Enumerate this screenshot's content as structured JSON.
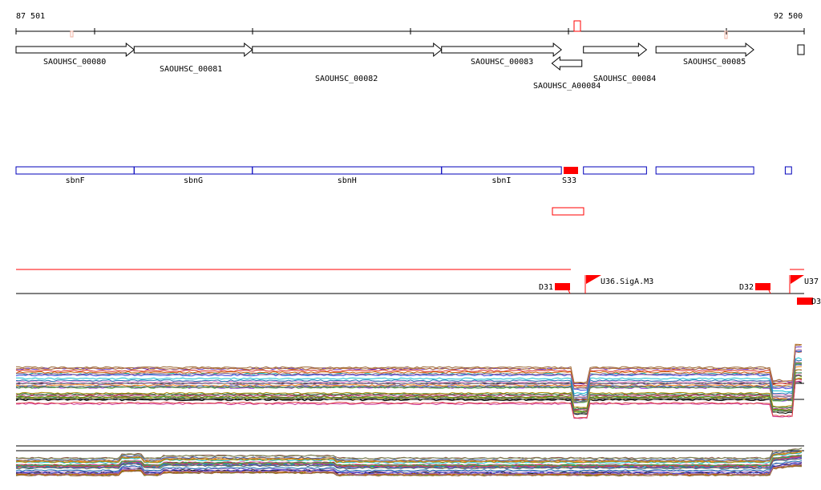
{
  "coordinate_axis": {
    "start_label": "87 501",
    "end_label": "92 500",
    "start_coord": 87501,
    "end_coord": 92500
  },
  "genes": [
    {
      "id": "SAOUHSC_00080",
      "start": 87501,
      "end": 88250,
      "strand": "+",
      "label": "SAOUHSC_00080"
    },
    {
      "id": "SAOUHSC_00081",
      "start": 88250,
      "end": 89000,
      "strand": "+",
      "label": "SAOUHSC_00081"
    },
    {
      "id": "SAOUHSC_00082",
      "start": 89000,
      "end": 90200,
      "strand": "+",
      "label": "SAOUHSC_00082"
    },
    {
      "id": "SAOUHSC_00083",
      "start": 90200,
      "end": 90960,
      "strand": "+",
      "label": "SAOUHSC_00083"
    },
    {
      "id": "SAOUHSC_A00084",
      "start": 90900,
      "end": 91090,
      "strand": "-",
      "label": "SAOUHSC_A00084"
    },
    {
      "id": "SAOUHSC_00084",
      "start": 91100,
      "end": 91500,
      "strand": "+",
      "label": "SAOUHSC_00084"
    },
    {
      "id": "SAOUHSC_00085",
      "start": 91560,
      "end": 92180,
      "strand": "+",
      "label": "SAOUHSC_00085"
    },
    {
      "id": "gene_end",
      "start": 92380,
      "end": 92420,
      "strand": "+",
      "label": ""
    }
  ],
  "gene_names": [
    {
      "start": 87501,
      "end": 88250,
      "label": "sbnF"
    },
    {
      "start": 88250,
      "end": 89000,
      "label": "sbnG"
    },
    {
      "start": 89000,
      "end": 90200,
      "label": "sbnH"
    },
    {
      "start": 90200,
      "end": 90960,
      "label": "sbnI"
    },
    {
      "start": 91100,
      "end": 91500,
      "label": ""
    },
    {
      "start": 91560,
      "end": 92180,
      "label": ""
    },
    {
      "start": 92380,
      "end": 92420,
      "label": ""
    }
  ],
  "s_feature": {
    "label": "S33",
    "start": 90960,
    "end": 91050
  },
  "ncrna_box": {
    "start": 90900,
    "end": 91100
  },
  "promoters": [
    {
      "label": "D31",
      "type": "down"
    },
    {
      "label": "U36.SigA.M3",
      "type": "up"
    },
    {
      "label": "D32",
      "type": "down"
    },
    {
      "label": "U37",
      "type": "up"
    },
    {
      "label": "D3",
      "type": "down"
    }
  ],
  "colors": {
    "gene_outline": "#000000",
    "name_box": "#0000bb",
    "feature": "#ff0000",
    "axis": "#000000"
  },
  "tracks": {
    "expression_1": {
      "series_count": 30
    },
    "expression_2": {
      "series_count": 30
    }
  }
}
